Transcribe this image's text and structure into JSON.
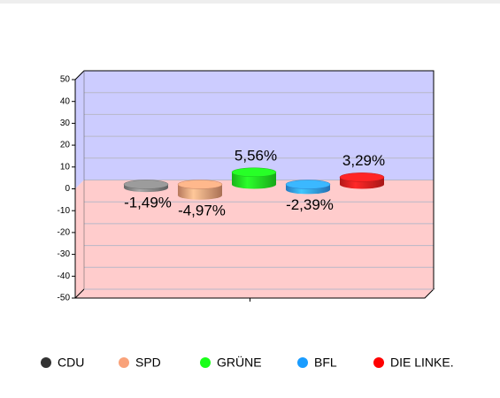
{
  "chart_data": {
    "type": "bar",
    "categories": [
      "CDU",
      "SPD",
      "GRÜNE",
      "BFL",
      "DIE LINKE."
    ],
    "values": [
      -1.49,
      -4.97,
      5.56,
      -2.39,
      3.29
    ],
    "value_labels": [
      "-1,49%",
      "-4,97%",
      "5,56%",
      "-2,39%",
      "3,29%"
    ],
    "colors": [
      "#888888",
      "#f2a07a",
      "#22ee22",
      "#33a0ff",
      "#ee2020"
    ],
    "legend_colors": [
      "#333333",
      "#f9a27a",
      "#1aff1a",
      "#1a9cff",
      "#ff0000"
    ],
    "ylim": [
      -50,
      50
    ],
    "yticks": [
      -50,
      -40,
      -30,
      -20,
      -10,
      0,
      10,
      20,
      30,
      40,
      50
    ],
    "grid": true
  }
}
